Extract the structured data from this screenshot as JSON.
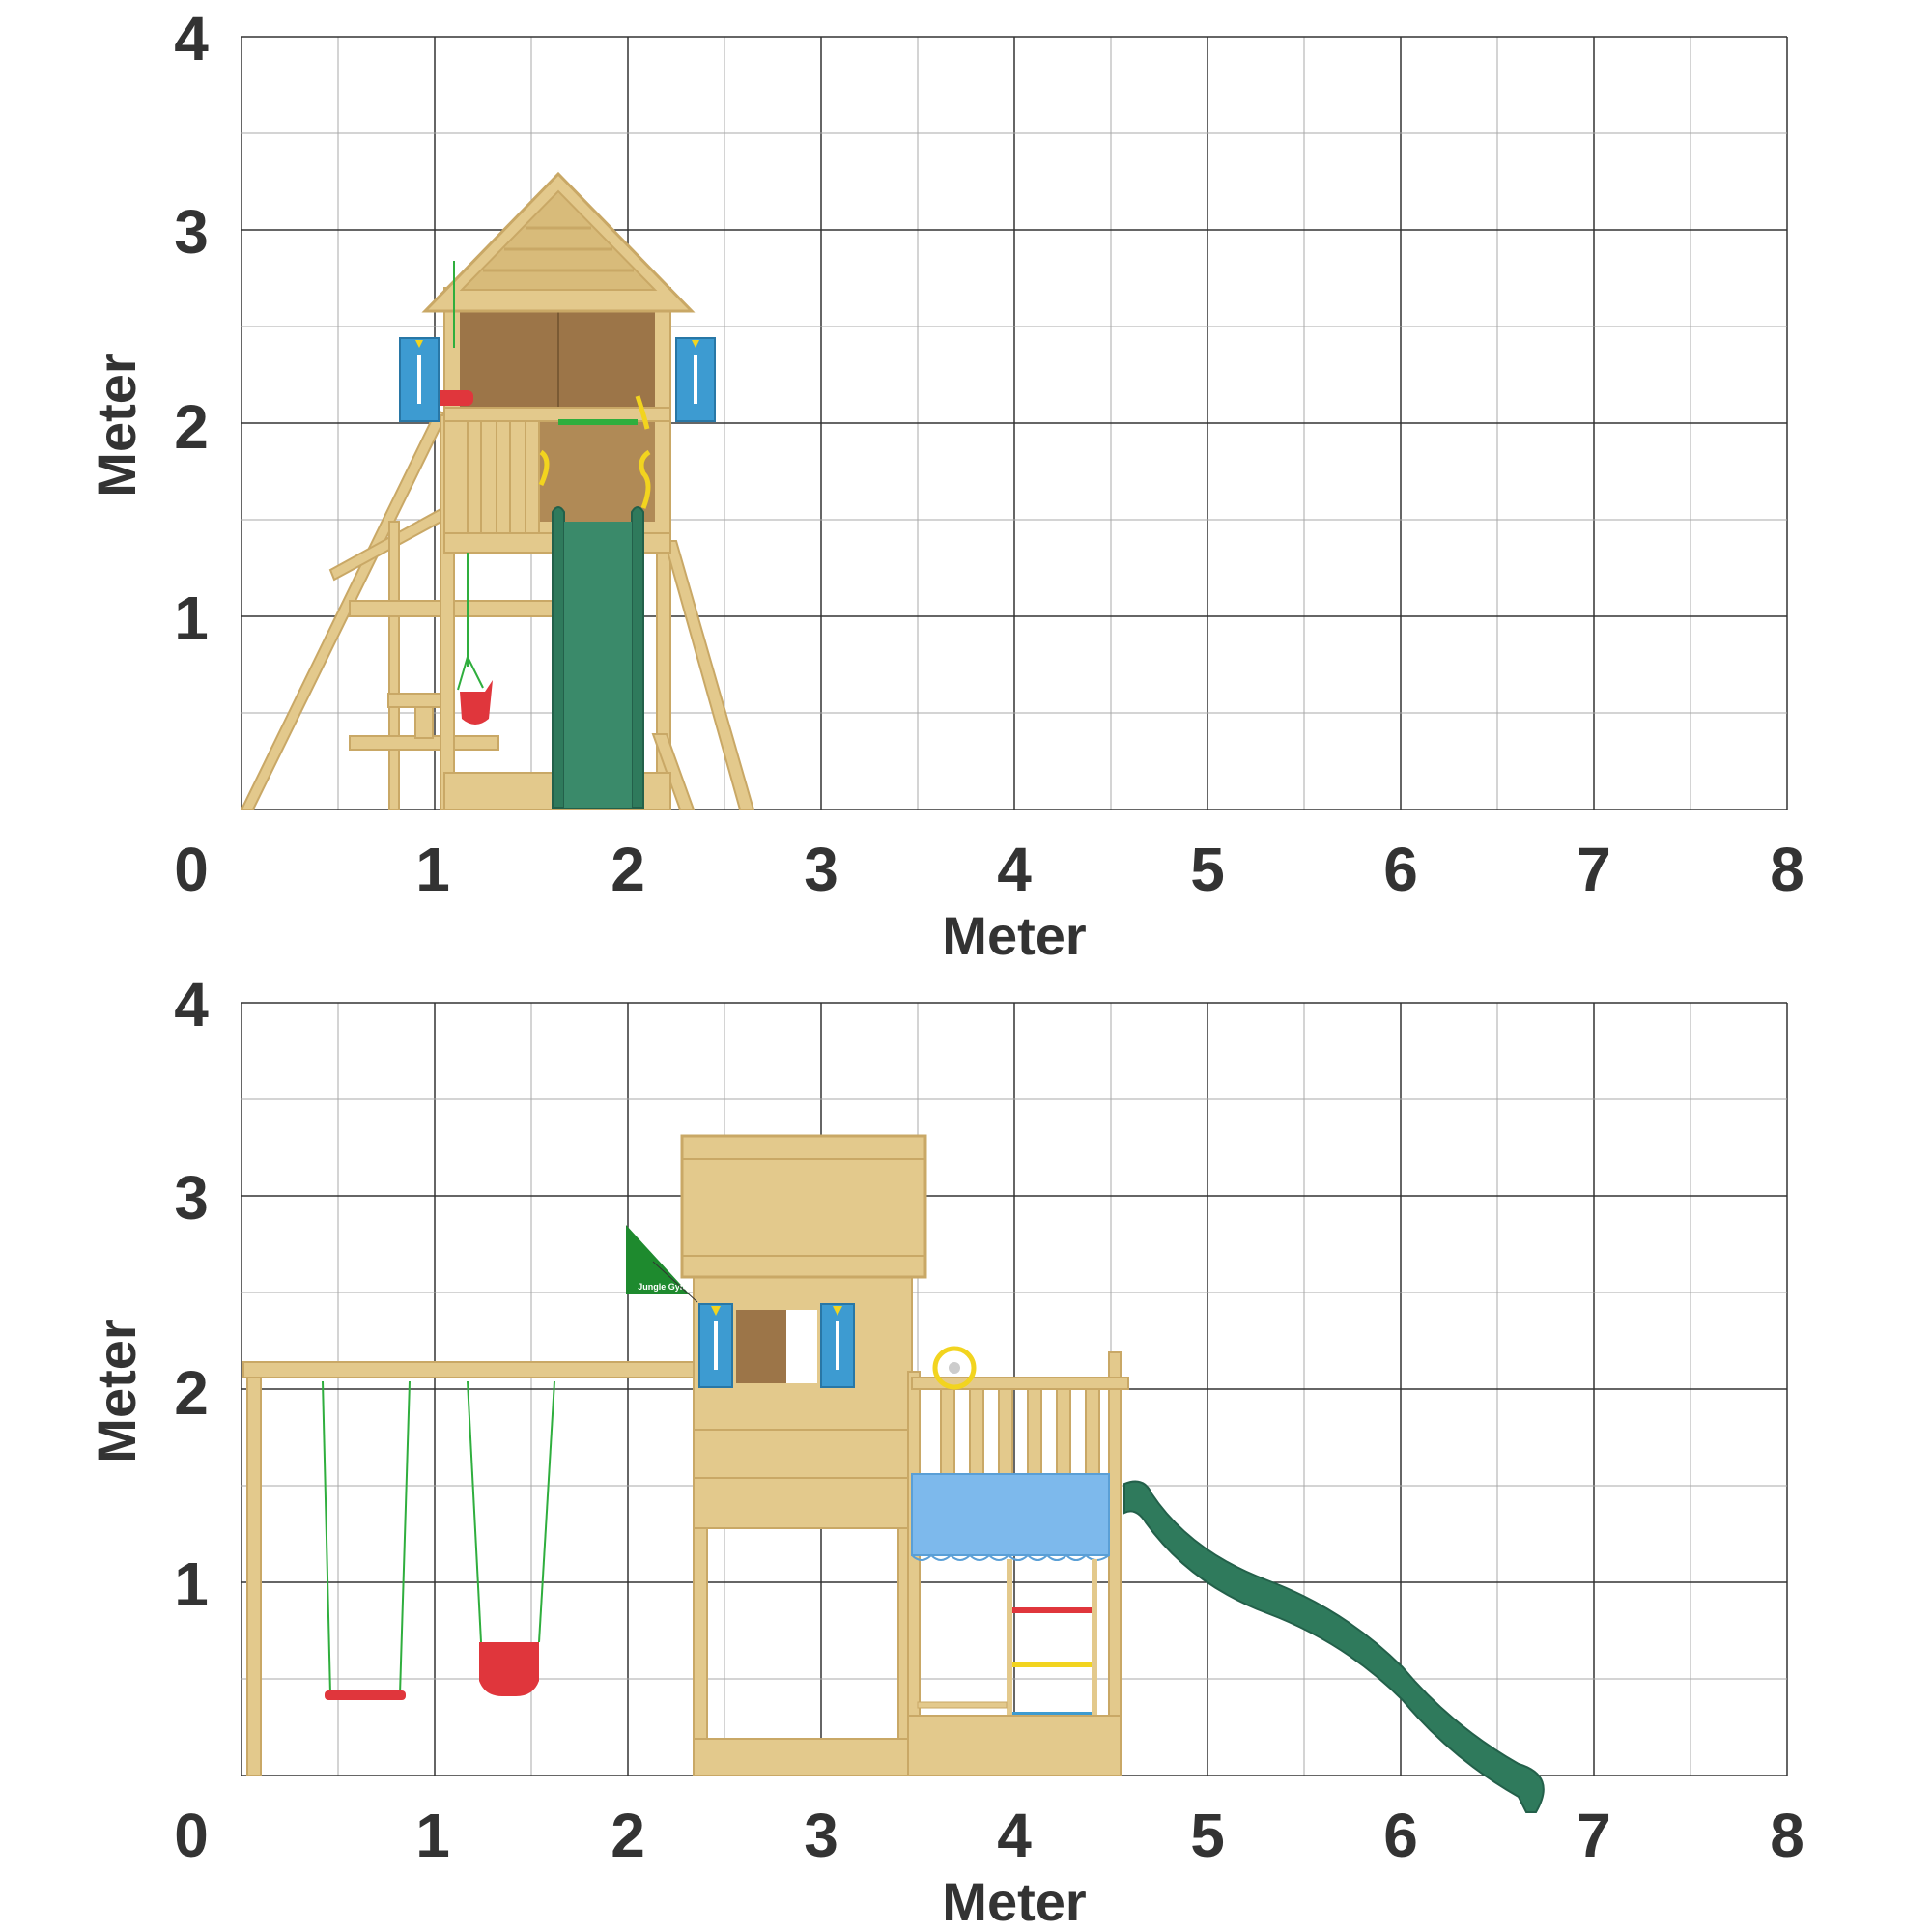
{
  "figure": {
    "colors": {
      "wood": "#e3c98c",
      "wood_dark": "#c9a866",
      "wood_shadow": "#a88a55",
      "panel_brown": "#9c7548",
      "slide_green": "#2f7a5c",
      "shutter_blue": "#3d9bd1",
      "canopy_blue": "#7db9ec",
      "accent_yellow": "#f2d41f",
      "seat_red": "#e0363c",
      "rope_green": "#2fae3d",
      "flag_green": "#1e8a2e",
      "grid_major": "#333333",
      "grid_minor": "#a9a9a9"
    },
    "panels": [
      {
        "id": "side-view",
        "x_ticks": [
          "0",
          "1",
          "2",
          "3",
          "4",
          "5",
          "6",
          "7",
          "8"
        ],
        "y_ticks": [
          "1",
          "2",
          "3",
          "4"
        ],
        "x_label": "Meter",
        "y_label": "Meter",
        "x_range": [
          0,
          8
        ],
        "y_range": [
          0,
          4
        ]
      },
      {
        "id": "front-view",
        "x_ticks": [
          "0",
          "1",
          "2",
          "3",
          "4",
          "5",
          "6",
          "7",
          "8"
        ],
        "y_ticks": [
          "1",
          "2",
          "3",
          "4"
        ],
        "x_label": "Meter",
        "y_label": "Meter",
        "x_range": [
          0,
          8
        ],
        "y_range": [
          0,
          4
        ],
        "flag_text": "Jungle Gym"
      }
    ]
  }
}
